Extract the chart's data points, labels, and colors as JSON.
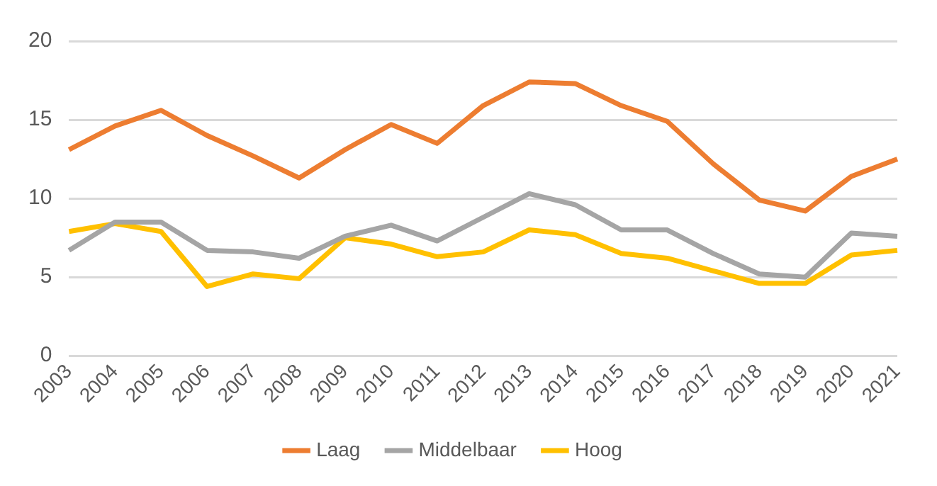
{
  "chart_data": {
    "type": "line",
    "categories": [
      "2003",
      "2004",
      "2005",
      "2006",
      "2007",
      "2008",
      "2009",
      "2010",
      "2011",
      "2012",
      "2013",
      "2014",
      "2015",
      "2016",
      "2017",
      "2018",
      "2019",
      "2020",
      "2021"
    ],
    "series": [
      {
        "name": "Laag",
        "color": "#ed7d31",
        "values": [
          13.1,
          14.6,
          15.6,
          14.0,
          12.7,
          11.3,
          13.1,
          14.7,
          13.5,
          15.9,
          17.4,
          17.3,
          15.9,
          14.9,
          12.2,
          9.9,
          9.2,
          11.4,
          12.5
        ]
      },
      {
        "name": "Middelbaar",
        "color": "#a5a5a5",
        "values": [
          6.7,
          8.5,
          8.5,
          6.7,
          6.6,
          6.2,
          7.6,
          8.3,
          7.3,
          8.8,
          10.3,
          9.6,
          8.0,
          8.0,
          6.5,
          5.2,
          5.0,
          7.8,
          7.6
        ]
      },
      {
        "name": "Hoog",
        "color": "#ffc000",
        "values": [
          7.9,
          8.4,
          7.9,
          4.4,
          5.2,
          4.9,
          7.5,
          7.1,
          6.3,
          6.6,
          8.0,
          7.7,
          6.5,
          6.2,
          5.4,
          4.6,
          4.6,
          6.4,
          6.7
        ]
      }
    ],
    "ylim": [
      0,
      20
    ],
    "yticks": [
      0,
      5,
      10,
      15,
      20
    ],
    "grid": "y",
    "legend": "bottom",
    "marker": "none",
    "line_style": "solid"
  }
}
